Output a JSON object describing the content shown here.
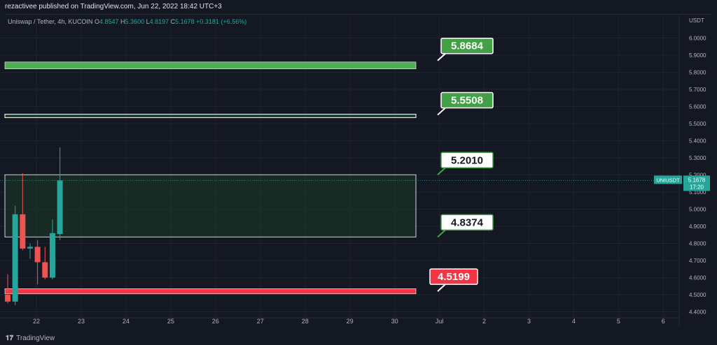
{
  "publish_info": "rezactivee published on TradingView.com, Jun 22, 2022 18:42 UTC+3",
  "header": {
    "symbol": "Uniswap / Tether, 4h, KUCOIN",
    "ohlc": [
      {
        "k": "O",
        "v": "4.8547"
      },
      {
        "k": "H",
        "v": "5.3600"
      },
      {
        "k": "L",
        "v": "4.8197"
      },
      {
        "k": "C",
        "v": "5.1678"
      }
    ],
    "change": "+0.3181 (+6.56%)"
  },
  "footer": {
    "brand": "TradingView"
  },
  "chart_data": {
    "type": "candlestick",
    "currency": "USDT",
    "ylim": [
      4.38,
      6.12
    ],
    "y_ticks": [
      "6.0000",
      "5.9000",
      "5.8000",
      "5.7000",
      "5.6000",
      "5.5000",
      "5.4000",
      "5.3000",
      "5.2000",
      "5.1000",
      "5.0000",
      "4.9000",
      "4.8000",
      "4.7000",
      "4.6000",
      "4.5000",
      "4.4000"
    ],
    "x_ticks": [
      "22",
      "23",
      "24",
      "25",
      "26",
      "27",
      "28",
      "29",
      "30",
      "Jul",
      "2",
      "3",
      "4",
      "5",
      "6"
    ],
    "candles": [
      {
        "o": 4.5,
        "h": 4.62,
        "l": 4.45,
        "c": 4.46
      },
      {
        "o": 4.46,
        "h": 5.02,
        "l": 4.44,
        "c": 4.97
      },
      {
        "o": 4.97,
        "h": 5.21,
        "l": 4.76,
        "c": 4.77
      },
      {
        "o": 4.77,
        "h": 4.8,
        "l": 4.71,
        "c": 4.78
      },
      {
        "o": 4.78,
        "h": 4.82,
        "l": 4.56,
        "c": 4.69
      },
      {
        "o": 4.69,
        "h": 4.78,
        "l": 4.59,
        "c": 4.6
      },
      {
        "o": 4.6,
        "h": 4.94,
        "l": 4.59,
        "c": 4.86
      },
      {
        "o": 4.8547,
        "h": 5.36,
        "l": 4.8197,
        "c": 5.1678
      }
    ],
    "zones": [
      {
        "top": 5.86,
        "bottom": 5.82,
        "style": "filled",
        "color": "#4caf50"
      },
      {
        "top": 5.555,
        "bottom": 5.535,
        "style": "outline",
        "color": "#4caf50"
      },
      {
        "top": 5.201,
        "bottom": 4.8374,
        "style": "box",
        "color": "#d1d4dc"
      },
      {
        "top": 4.535,
        "bottom": 4.505,
        "style": "filled",
        "color": "#f23645"
      }
    ],
    "labels": [
      {
        "text": "5.8684",
        "price": 5.8684,
        "style": "green-filled",
        "color": "#43a047"
      },
      {
        "text": "5.5508",
        "price": 5.5508,
        "style": "green-filled",
        "color": "#43a047"
      },
      {
        "text": "5.2010",
        "price": 5.201,
        "style": "white-outline",
        "color": "#43a047"
      },
      {
        "text": "4.8374",
        "price": 4.8374,
        "style": "white-outline",
        "color": "#43a047"
      },
      {
        "text": "4.5199",
        "price": 4.5199,
        "style": "red-filled",
        "color": "#f23645"
      }
    ],
    "current_price": {
      "symbol": "UNIUSDT",
      "value": "5.1678",
      "countdown": "17:20",
      "price": 5.1678,
      "color": "#26a69a"
    },
    "colors": {
      "up": "#26a69a",
      "down": "#ef5350",
      "grid": "#1f2330",
      "text": "#b2b5be",
      "background": "#141823"
    }
  }
}
